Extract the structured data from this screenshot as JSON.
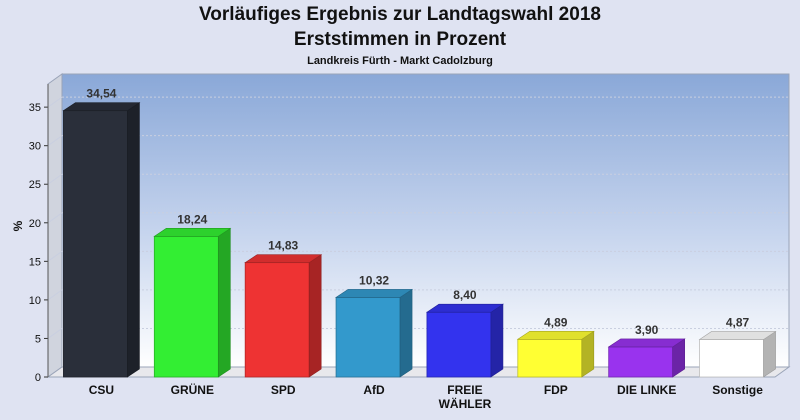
{
  "chart_data": {
    "type": "bar",
    "title": "Vorläufiges Ergebnis zur Landtagswahl 2018",
    "subtitle": "Erststimmen in Prozent",
    "subsubtitle": "Landkreis Fürth - Markt Cadolzburg",
    "ylabel": "%",
    "xlabel": "",
    "ylim": [
      0,
      38
    ],
    "yticks": [
      0,
      5,
      10,
      15,
      20,
      25,
      30,
      35
    ],
    "grid": true,
    "categories": [
      "CSU",
      "GRÜNE",
      "SPD",
      "AfD",
      "FREIE WÄHLER",
      "FDP",
      "DIE LINKE",
      "Sonstige"
    ],
    "category_lines": [
      [
        "CSU"
      ],
      [
        "GRÜNE"
      ],
      [
        "SPD"
      ],
      [
        "AfD"
      ],
      [
        "FREIE",
        "WÄHLER"
      ],
      [
        "FDP"
      ],
      [
        "DIE LINKE"
      ],
      [
        "Sonstige"
      ]
    ],
    "values": [
      34.54,
      18.24,
      14.83,
      10.32,
      8.4,
      4.89,
      3.9,
      4.87
    ],
    "value_labels": [
      "34,54",
      "18,24",
      "14,83",
      "10,32",
      "8,40",
      "4,89",
      "3,90",
      "4,87"
    ],
    "colors": [
      "#2a2f3a",
      "#33ee33",
      "#ee3333",
      "#3399cc",
      "#3333ee",
      "#ffff33",
      "#9933ee",
      "#ffffff"
    ]
  }
}
